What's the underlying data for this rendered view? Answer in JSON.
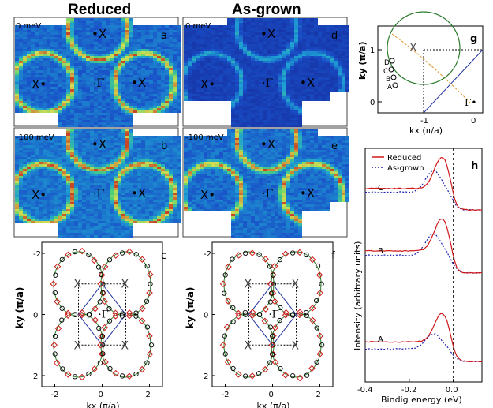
{
  "headers": {
    "reduced": "Reduced",
    "as_grown": "As-grown"
  },
  "panels": {
    "a": {
      "letter": "a",
      "energy": "0 meV"
    },
    "b": {
      "letter": "b",
      "energy": "-100 meV"
    },
    "d": {
      "letter": "d",
      "energy": "0 meV"
    },
    "e": {
      "letter": "e",
      "energy": "-100 meV"
    },
    "c": {
      "letter": "c"
    },
    "f": {
      "letter": "f"
    },
    "g": {
      "letter": "g"
    },
    "h": {
      "letter": "h"
    }
  },
  "symbols": {
    "X": "X",
    "Gamma": "Γ"
  },
  "fermi_axes": {
    "ylabel": "ky (π/a)",
    "xlabel": "kx (π/a)",
    "xticks": [
      "-2",
      "0",
      "2"
    ],
    "yticks": [
      "2",
      "0",
      "-2"
    ]
  },
  "panel_g": {
    "ylabel": "ky (π/a)",
    "xlabel": "kx (π/a)",
    "yticks": [
      "1",
      "0"
    ],
    "xticks": [
      "-1",
      "0"
    ],
    "points": [
      "A",
      "B",
      "C",
      "D"
    ]
  },
  "panel_h": {
    "ylabel": "Intensity (arbitrary units)",
    "xlabel": "Bindig energy (eV)",
    "xticks": [
      "-0.4",
      "-0.2",
      "0.0"
    ],
    "legend": [
      "Reduced",
      "As-grown"
    ],
    "curve_labels": [
      "C",
      "B",
      "A"
    ],
    "colors": {
      "reduced": "#d01818",
      "as_grown": "#1a1ab0"
    }
  },
  "chart_data": {
    "type": "line",
    "xlabel": "Bindig energy (eV)",
    "ylabel": "Intensity (arbitrary units)",
    "xlim": [
      -0.4,
      0.13
    ],
    "series": [
      {
        "name": "Reduced",
        "curves": [
          "A",
          "B",
          "C"
        ]
      },
      {
        "name": "As-grown",
        "curves": [
          "A",
          "B",
          "C"
        ]
      }
    ]
  }
}
